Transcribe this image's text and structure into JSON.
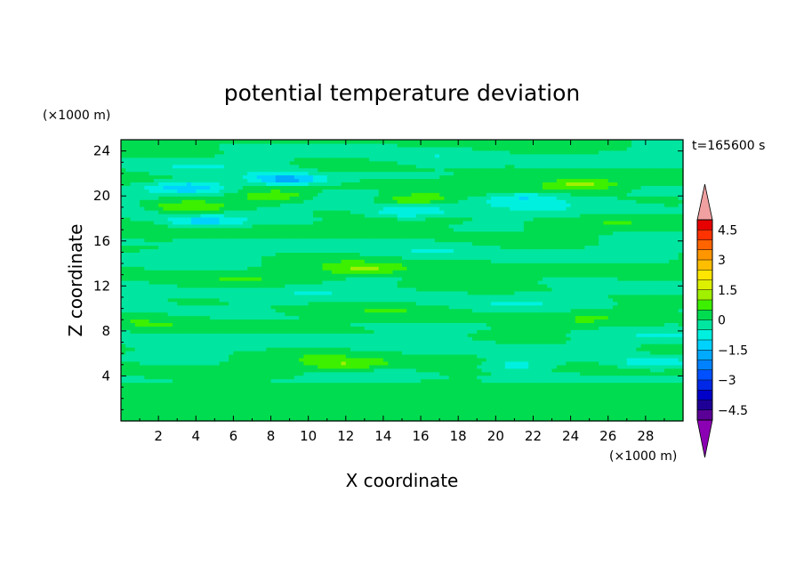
{
  "chart_data": {
    "type": "heatmap",
    "title": "potential temperature deviation",
    "xlabel": "X coordinate",
    "ylabel": "Z coordinate",
    "x_unit": "(×1000 m)",
    "y_unit": "(×1000 m)",
    "time_label": "t=165600 s",
    "xlim": [
      0,
      30
    ],
    "ylim": [
      0,
      25
    ],
    "x_ticks": [
      2,
      4,
      6,
      8,
      10,
      12,
      14,
      16,
      18,
      20,
      22,
      24,
      26,
      28
    ],
    "y_ticks": [
      4,
      8,
      12,
      16,
      20,
      24
    ],
    "colorbar": {
      "levels": [
        -5,
        -4.5,
        -4,
        -3.5,
        -3,
        -2.5,
        -2,
        -1.5,
        -1,
        -0.5,
        0,
        0.5,
        1,
        1.5,
        2,
        2.5,
        3,
        3.5,
        4,
        4.5,
        5
      ],
      "tick_labels": [
        "4.5",
        "3",
        "1.5",
        "0",
        "−1.5",
        "−3",
        "−4.5"
      ],
      "tick_values": [
        4.5,
        3,
        1.5,
        0,
        -1.5,
        -3,
        -4.5
      ],
      "colors": [
        "#5a0096",
        "#1e0096",
        "#0000c8",
        "#0028e6",
        "#0050ff",
        "#0082ff",
        "#00aaff",
        "#00d2ff",
        "#00f0e0",
        "#00e6a0",
        "#00dc50",
        "#3cf000",
        "#a0f000",
        "#dcf000",
        "#ffe600",
        "#ffbe00",
        "#ff9600",
        "#ff6400",
        "#ff3200",
        "#e60000"
      ],
      "over_color": "#f0a0a0",
      "under_color": "#8c00b4"
    },
    "field_features": [
      {
        "x": 8.8,
        "z": 21.5,
        "value": -2.2
      },
      {
        "x": 3.7,
        "z": 20.8,
        "value": -1.6
      },
      {
        "x": 21.5,
        "z": 19.9,
        "value": -1.1
      },
      {
        "x": 15.2,
        "z": 18.6,
        "value": -1.3
      },
      {
        "x": 4.3,
        "z": 17.7,
        "value": -1.2
      },
      {
        "x": 8.5,
        "z": 20.0,
        "value": 1.0
      },
      {
        "x": 15.5,
        "z": 19.7,
        "value": 1.2
      },
      {
        "x": 24.5,
        "z": 21.0,
        "value": 1.2
      },
      {
        "x": 3.5,
        "z": 19.0,
        "value": 1.0
      },
      {
        "x": 13.0,
        "z": 13.5,
        "value": 1.1
      },
      {
        "x": 12.0,
        "z": 5.0,
        "value": 1.0
      },
      {
        "x": 21.0,
        "z": 5.0,
        "value": -1.0
      },
      {
        "x": 28.5,
        "z": 5.2,
        "value": -1.2
      }
    ]
  }
}
